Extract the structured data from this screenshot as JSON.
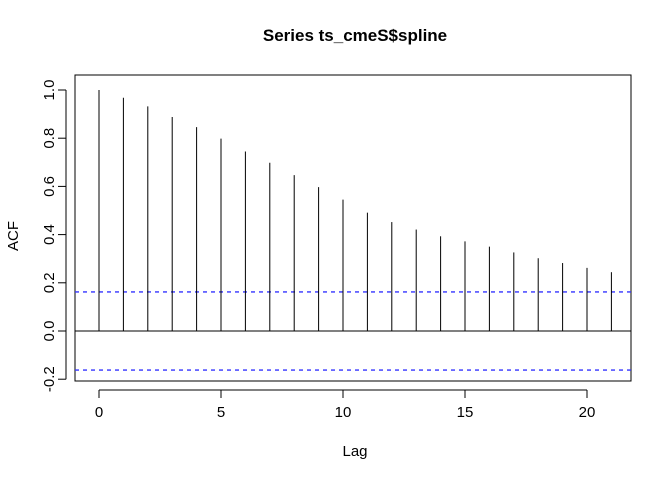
{
  "chart_data": {
    "type": "bar",
    "title": "Series  ts_cmeS$spline",
    "xlabel": "Lag",
    "ylabel": "ACF",
    "xlim": [
      -1,
      22
    ],
    "ylim": [
      -0.2,
      1.0
    ],
    "x_ticks": [
      0,
      5,
      10,
      15,
      20
    ],
    "x_tick_labels": [
      "0",
      "5",
      "10",
      "15",
      "20"
    ],
    "y_ticks": [
      -0.2,
      0.0,
      0.2,
      0.4,
      0.6,
      0.8,
      1.0
    ],
    "y_tick_labels": [
      "-0.2",
      "0.0",
      "0.2",
      "0.4",
      "0.6",
      "0.8",
      "1.0"
    ],
    "lags": [
      0,
      1,
      2,
      3,
      4,
      5,
      6,
      7,
      8,
      9,
      10,
      11,
      12,
      13,
      14,
      15,
      16,
      17,
      18,
      19,
      20,
      21
    ],
    "acf": [
      1.0,
      0.968,
      0.932,
      0.888,
      0.846,
      0.798,
      0.745,
      0.698,
      0.647,
      0.597,
      0.545,
      0.491,
      0.452,
      0.421,
      0.393,
      0.372,
      0.35,
      0.326,
      0.302,
      0.282,
      0.262,
      0.244
    ],
    "confidence_band": [
      0.162,
      -0.162
    ],
    "colors": {
      "bars": "#000000",
      "confidence": "#3333ff",
      "zero_line": "#000000"
    },
    "grid": false
  }
}
